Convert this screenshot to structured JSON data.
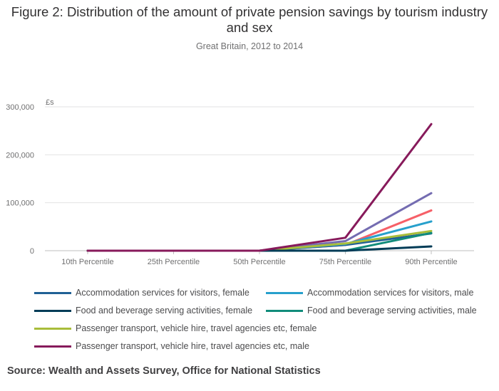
{
  "title": "Figure 2: Distribution of the amount of private pension savings by tourism industry and sex",
  "subtitle": "Great Britain, 2012 to 2014",
  "source": "Source: Wealth and Assets Survey, Office for National Statistics",
  "chart_data": {
    "type": "line",
    "title": "Figure 2: Distribution of the amount of private pension savings by tourism industry and sex",
    "subtitle": "Great Britain, 2012 to 2014",
    "ylabel": "£s",
    "xlabel": "",
    "categories": [
      "10th Percentile",
      "25th Percentile",
      "50th Percentile",
      "75th Percentile",
      "90th Percentile"
    ],
    "ylim": [
      0,
      300000
    ],
    "yticks": [
      0,
      100000,
      200000,
      300000
    ],
    "ytick_labels": [
      "0",
      "100,000",
      "200,000",
      "300,000"
    ],
    "grid": true,
    "legend_position": "bottom",
    "series": [
      {
        "name": "Accommodation services for visitors, female",
        "color": "#206095",
        "values": [
          0,
          0,
          0,
          12000,
          36000
        ]
      },
      {
        "name": "Accommodation services for visitors, male",
        "color": "#27A0CC",
        "values": [
          0,
          0,
          0,
          14000,
          61000
        ]
      },
      {
        "name": "Food and beverage serving activities, female",
        "color": "#003C57",
        "values": [
          0,
          0,
          0,
          0,
          9000
        ]
      },
      {
        "name": "Food and beverage serving activities, male",
        "color": "#118C7B",
        "values": [
          0,
          0,
          0,
          0,
          37000
        ]
      },
      {
        "name": "Passenger transport, vehicle hire, travel agencies etc, female",
        "color": "#A8BD3A",
        "values": [
          0,
          0,
          0,
          15000,
          41000
        ]
      },
      {
        "name": "Passenger transport, vehicle hire, travel agencies etc, male",
        "color": "#871A5B",
        "values": [
          0,
          0,
          0,
          27000,
          264000
        ]
      },
      {
        "name": "",
        "color": "#F66068",
        "values": [
          0,
          0,
          0,
          12000,
          84000
        ]
      },
      {
        "name": "",
        "color": "#746CB1",
        "values": [
          0,
          0,
          0,
          20000,
          120000
        ]
      }
    ],
    "draw_order": [
      6,
      7,
      0,
      1,
      4,
      3,
      2,
      5
    ]
  }
}
